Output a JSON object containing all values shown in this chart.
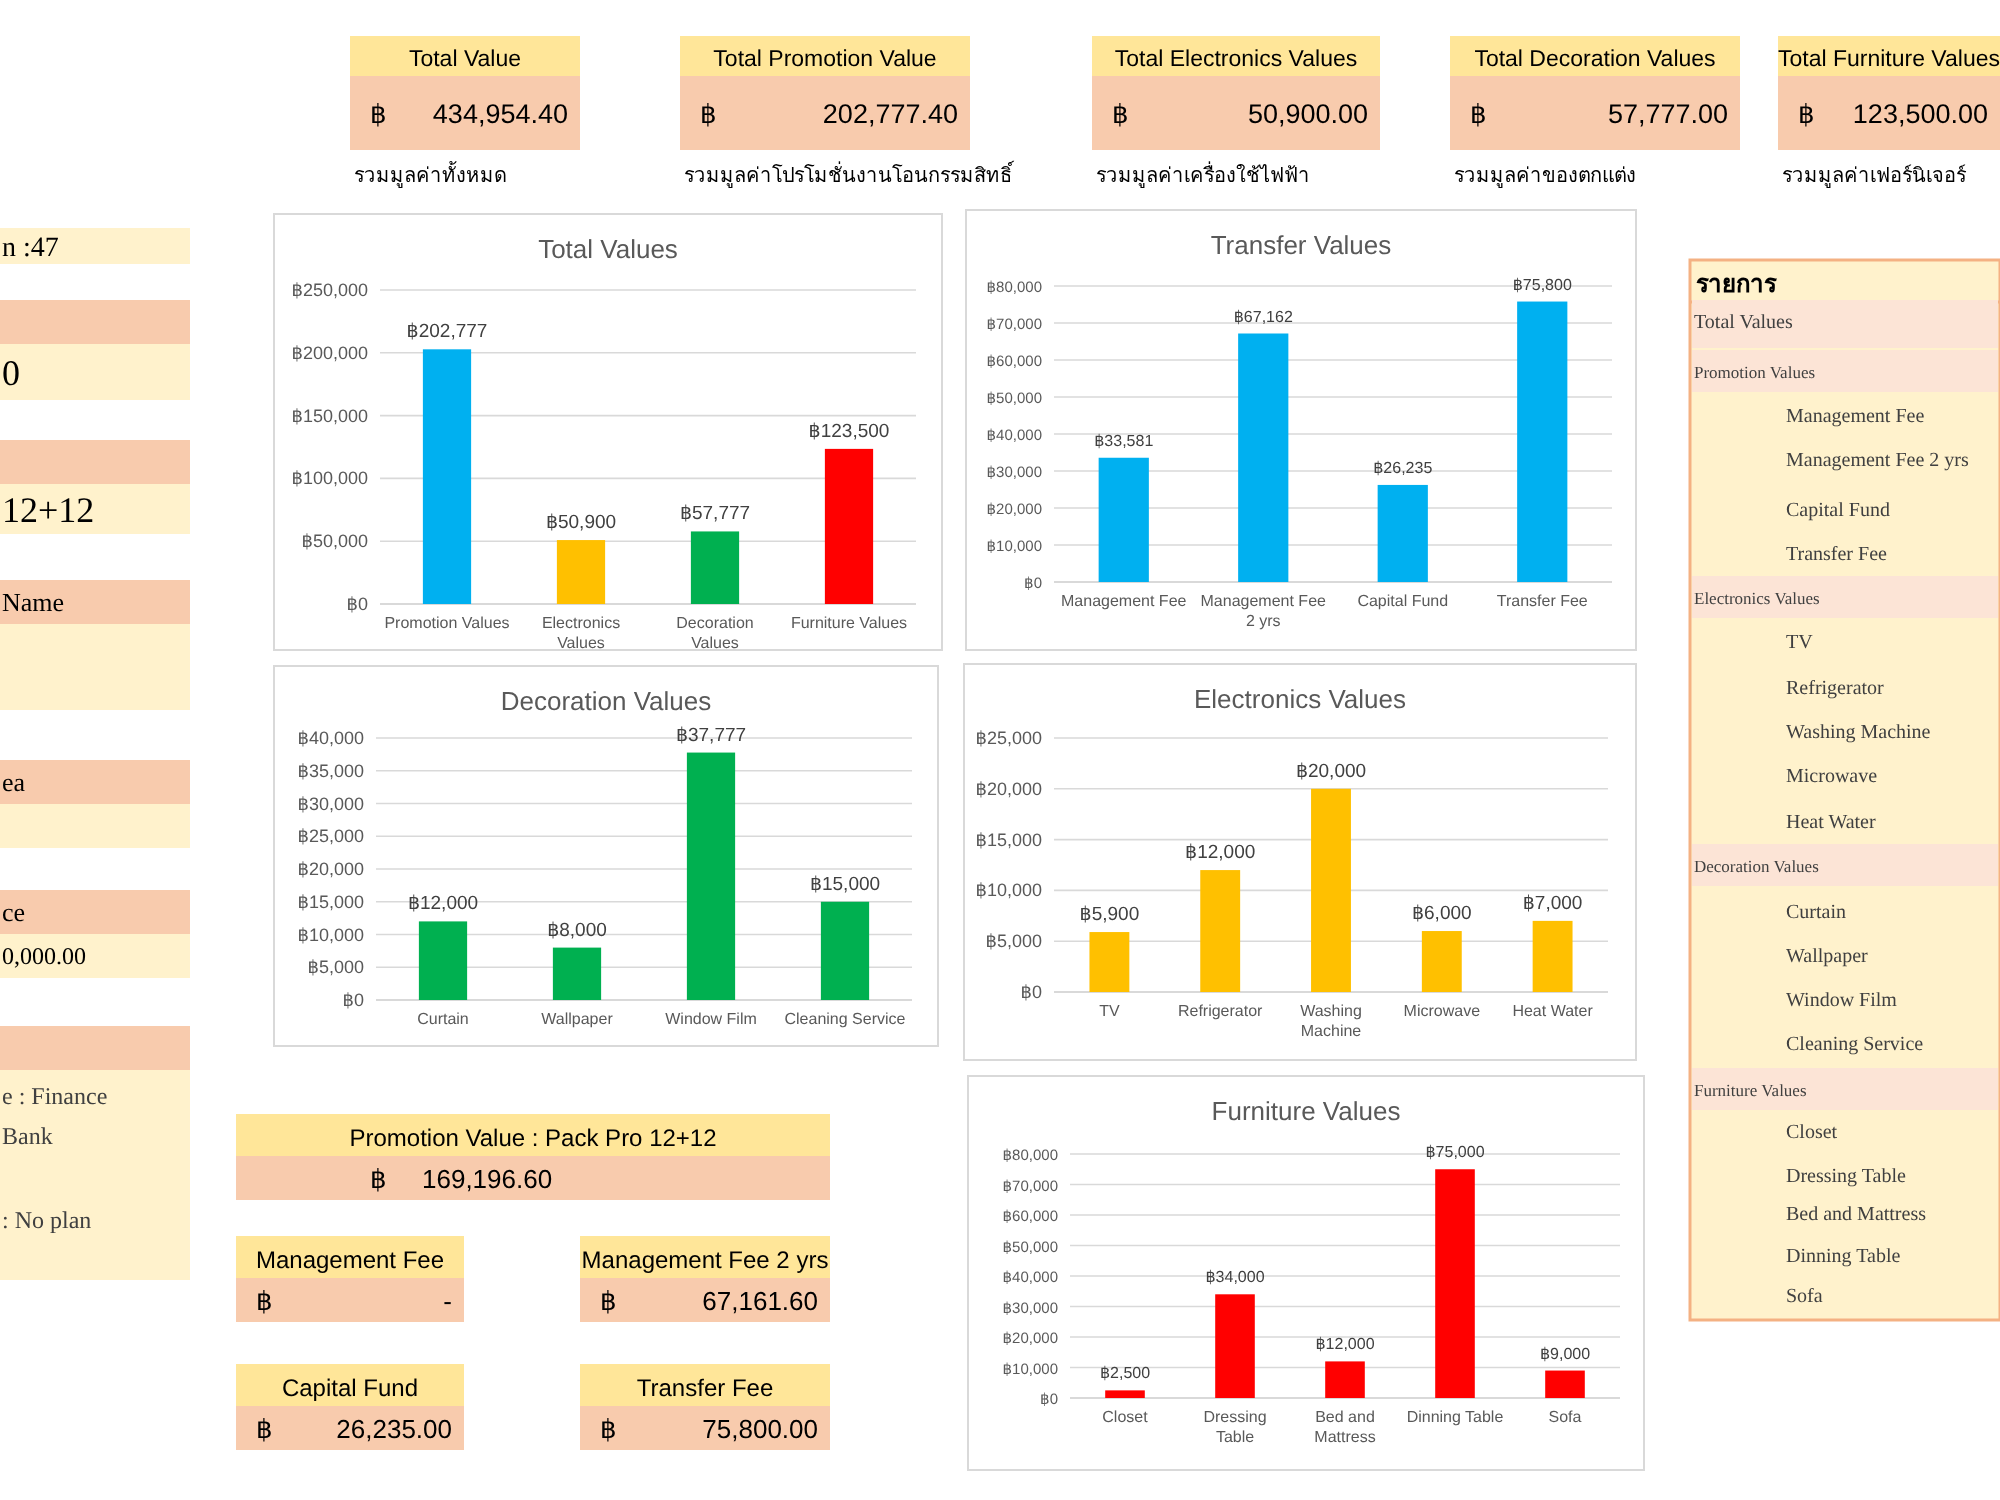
{
  "chart_data": [
    {
      "type": "other",
      "title": "Total Value",
      "annotations": [
        "฿",
        "434,954.40",
        "รวมมูลค่าทั้งหมด"
      ]
    },
    {
      "type": "other",
      "title": "Total Promotion Value",
      "annotations": [
        "฿",
        "202,777.40",
        "รวมมูลค่าโปรโมชั่นงานโอนกรรมสิทธิ์"
      ]
    },
    {
      "type": "other",
      "title": "Total Electronics Values",
      "annotations": [
        "฿",
        "50,900.00",
        "รวมมูลค่าเครื่องใช้ไฟฟ้า"
      ]
    },
    {
      "type": "other",
      "title": "Total Decoration Values",
      "annotations": [
        "฿",
        "57,777.00",
        "รวมมูลค่าของตกแต่ง"
      ]
    },
    {
      "type": "other",
      "title": "Total Furniture Values",
      "annotations": [
        "฿",
        "123,500.00",
        "รวมมูลค่าเฟอร์นิเจอร์"
      ]
    },
    {
      "type": "other",
      "annotations": [
        "n :47",
        "0",
        "12+12",
        "Name",
        "ea",
        "ce",
        "0,000.00",
        "e : Finance",
        "Bank",
        ": No plan"
      ]
    },
    {
      "type": "bar",
      "title": "Total Values",
      "categories": [
        "Promotion Values",
        "Electronics Values",
        "Decoration Values",
        "Furniture Values"
      ],
      "values": [
        202777,
        50900,
        57777,
        123500
      ],
      "colors": [
        "#00b0f0",
        "#ffc000",
        "#00b050",
        "#ff0000"
      ],
      "value_labels": [
        "฿202,777",
        "฿50,900",
        "฿57,777",
        "฿123,500"
      ],
      "ylim": [
        0,
        250000
      ],
      "yticks": [
        {
          "value": 0,
          "label": "฿0"
        },
        {
          "value": 50000,
          "label": "฿50,000"
        },
        {
          "value": 100000,
          "label": "฿100,000"
        },
        {
          "value": 150000,
          "label": "฿150,000"
        },
        {
          "value": 200000,
          "label": "฿200,000"
        },
        {
          "value": 250000,
          "label": "฿250,000"
        }
      ],
      "grid": "y"
    },
    {
      "type": "bar",
      "title": "Transfer Values",
      "categories": [
        "Management Fee",
        "Management Fee 2 yrs",
        "Capital Fund",
        "Transfer Fee"
      ],
      "values": [
        33581,
        67162,
        26235,
        75800
      ],
      "color": "#00b0f0",
      "value_labels": [
        "฿33,581",
        "฿67,162",
        "฿26,235",
        "฿75,800"
      ],
      "ylim": [
        0,
        80000
      ],
      "yticks": [
        {
          "value": 0,
          "label": "฿0"
        },
        {
          "value": 10000,
          "label": "฿10,000"
        },
        {
          "value": 20000,
          "label": "฿20,000"
        },
        {
          "value": 30000,
          "label": "฿30,000"
        },
        {
          "value": 40000,
          "label": "฿40,000"
        },
        {
          "value": 50000,
          "label": "฿50,000"
        },
        {
          "value": 60000,
          "label": "฿60,000"
        },
        {
          "value": 70000,
          "label": "฿70,000"
        },
        {
          "value": 80000,
          "label": "฿80,000"
        }
      ],
      "grid": "y"
    },
    {
      "type": "other",
      "title": "รายการ",
      "annotations": [
        "Total Values",
        "Promotion Values",
        "Management Fee",
        "Management Fee 2 yrs",
        "Capital Fund",
        "Transfer Fee",
        "Electronics Values",
        "TV",
        "Refrigerator",
        "Washing Machine",
        "Microwave",
        "Heat Water",
        "Decoration Values",
        "Curtain",
        "Wallpaper",
        "Window Film",
        "Cleaning Service",
        "Furniture Values",
        "Closet",
        "Dressing Table",
        "Bed and Mattress",
        "Dinning Table",
        "Sofa"
      ]
    },
    {
      "type": "bar",
      "title": "Decoration Values",
      "categories": [
        "Curtain",
        "Wallpaper",
        "Window Film",
        "Cleaning Service"
      ],
      "values": [
        12000,
        8000,
        37777,
        15000
      ],
      "color": "#00b050",
      "value_labels": [
        "฿12,000",
        "฿8,000",
        "฿37,777",
        "฿15,000"
      ],
      "ylim": [
        0,
        40000
      ],
      "yticks": [
        {
          "value": 0,
          "label": "฿0"
        },
        {
          "value": 5000,
          "label": "฿5,000"
        },
        {
          "value": 10000,
          "label": "฿10,000"
        },
        {
          "value": 15000,
          "label": "฿15,000"
        },
        {
          "value": 20000,
          "label": "฿20,000"
        },
        {
          "value": 25000,
          "label": "฿25,000"
        },
        {
          "value": 30000,
          "label": "฿30,000"
        },
        {
          "value": 35000,
          "label": "฿35,000"
        },
        {
          "value": 40000,
          "label": "฿40,000"
        }
      ],
      "grid": "y"
    },
    {
      "type": "bar",
      "title": "Electronics Values",
      "categories": [
        "TV",
        "Refrigerator",
        "Washing Machine",
        "Microwave",
        "Heat Water"
      ],
      "values": [
        5900,
        12000,
        20000,
        6000,
        7000
      ],
      "color": "#ffc000",
      "value_labels": [
        "฿5,900",
        "฿12,000",
        "฿20,000",
        "฿6,000",
        "฿7,000"
      ],
      "ylim": [
        0,
        25000
      ],
      "yticks": [
        {
          "value": 0,
          "label": "฿0"
        },
        {
          "value": 5000,
          "label": "฿5,000"
        },
        {
          "value": 10000,
          "label": "฿10,000"
        },
        {
          "value": 15000,
          "label": "฿15,000"
        },
        {
          "value": 20000,
          "label": "฿20,000"
        },
        {
          "value": 25000,
          "label": "฿25,000"
        }
      ],
      "grid": "y"
    },
    {
      "type": "other",
      "title": "Promotion Value :  Pack Pro 12+12",
      "annotations": [
        "฿",
        "169,196.60"
      ]
    },
    {
      "type": "other",
      "title": "Management Fee",
      "annotations": [
        "฿",
        "-"
      ]
    },
    {
      "type": "other",
      "title": "Management Fee 2 yrs",
      "annotations": [
        "฿",
        "67,161.60"
      ]
    },
    {
      "type": "other",
      "title": "Capital Fund",
      "annotations": [
        "฿",
        "26,235.00"
      ]
    },
    {
      "type": "other",
      "title": "Transfer Fee",
      "annotations": [
        "฿",
        "75,800.00"
      ]
    },
    {
      "type": "bar",
      "title": "Furniture Values",
      "categories": [
        "Closet",
        "Dressing Table",
        "Bed and Mattress",
        "Dinning Table",
        "Sofa"
      ],
      "values": [
        2500,
        34000,
        12000,
        75000,
        9000
      ],
      "color": "#ff0000",
      "value_labels": [
        "฿2,500",
        "฿34,000",
        "฿12,000",
        "฿75,000",
        "฿9,000"
      ],
      "ylim": [
        0,
        80000
      ],
      "yticks": [
        {
          "value": 0,
          "label": "฿0"
        },
        {
          "value": 10000,
          "label": "฿10,000"
        },
        {
          "value": 20000,
          "label": "฿20,000"
        },
        {
          "value": 30000,
          "label": "฿30,000"
        },
        {
          "value": 40000,
          "label": "฿40,000"
        },
        {
          "value": 50000,
          "label": "฿50,000"
        },
        {
          "value": 60000,
          "label": "฿60,000"
        },
        {
          "value": 70000,
          "label": "฿70,000"
        },
        {
          "value": 80000,
          "label": "฿80,000"
        }
      ],
      "grid": "y"
    }
  ]
}
